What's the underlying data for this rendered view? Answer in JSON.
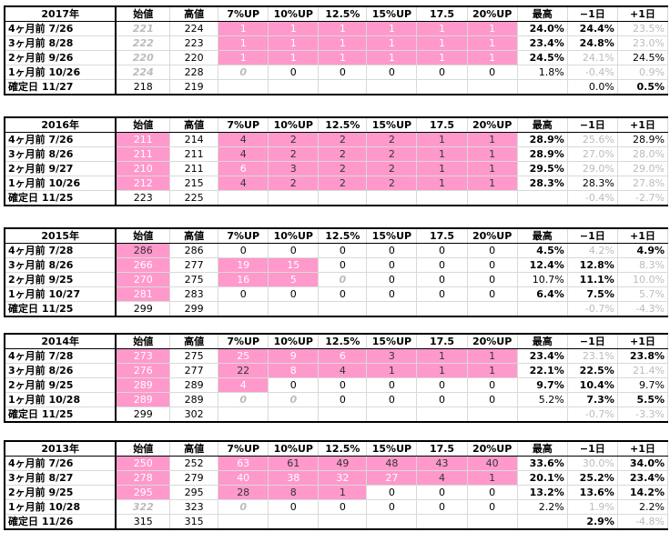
{
  "columns": [
    "始値",
    "高値",
    "7%UP",
    "10%UP",
    "12.5%",
    "15%UP",
    "17.5",
    "20%UP",
    "最高",
    "−1日",
    "+1日"
  ],
  "blocks": [
    {
      "year": "2017年",
      "rows": [
        {
          "label": "4ヶ月前  7/26",
          "v": [
            "221",
            "224",
            "1",
            "1",
            "1",
            "1",
            "1",
            "1",
            "24.0%",
            "24.4%",
            "23.5%"
          ]
        },
        {
          "label": "3ヶ月前  8/28",
          "v": [
            "222",
            "223",
            "1",
            "1",
            "1",
            "1",
            "1",
            "1",
            "23.4%",
            "24.8%",
            "23.0%"
          ]
        },
        {
          "label": "2ヶ月前  9/26",
          "v": [
            "220",
            "220",
            "1",
            "1",
            "1",
            "1",
            "1",
            "1",
            "24.5%",
            "24.1%",
            "24.5%"
          ]
        },
        {
          "label": "1ヶ月前  10/26",
          "v": [
            "224",
            "228",
            "0",
            "0",
            "0",
            "0",
            "0",
            "0",
            "1.8%",
            "-0.4%",
            "0.9%"
          ]
        },
        {
          "label": "確定日  11/27",
          "v": [
            "218",
            "219",
            "",
            "",
            "",
            "",
            "",
            "",
            "",
            "0.0%",
            "0.5%"
          ]
        }
      ]
    },
    {
      "year": "2016年",
      "rows": [
        {
          "label": "4ヶ月前  7/26",
          "v": [
            "211",
            "214",
            "4",
            "2",
            "2",
            "2",
            "1",
            "1",
            "28.9%",
            "25.6%",
            "28.9%"
          ]
        },
        {
          "label": "3ヶ月前  8/26",
          "v": [
            "211",
            "211",
            "4",
            "2",
            "2",
            "2",
            "1",
            "1",
            "28.9%",
            "27.0%",
            "28.0%"
          ]
        },
        {
          "label": "2ヶ月前  9/27",
          "v": [
            "210",
            "211",
            "6",
            "3",
            "2",
            "2",
            "1",
            "1",
            "29.5%",
            "29.0%",
            "29.0%"
          ]
        },
        {
          "label": "1ヶ月前  10/26",
          "v": [
            "212",
            "215",
            "4",
            "2",
            "2",
            "2",
            "1",
            "1",
            "28.3%",
            "28.3%",
            "27.8%"
          ]
        },
        {
          "label": "確定日  11/25",
          "v": [
            "223",
            "225",
            "",
            "",
            "",
            "",
            "",
            "",
            "",
            "-0.4%",
            "-2.7%"
          ]
        }
      ]
    },
    {
      "year": "2015年",
      "rows": [
        {
          "label": "4ヶ月前  7/28",
          "v": [
            "286",
            "286",
            "0",
            "0",
            "0",
            "0",
            "0",
            "0",
            "4.5%",
            "4.2%",
            "4.9%"
          ]
        },
        {
          "label": "3ヶ月前  8/26",
          "v": [
            "266",
            "277",
            "19",
            "15",
            "0",
            "0",
            "0",
            "0",
            "12.4%",
            "12.8%",
            "8.3%"
          ]
        },
        {
          "label": "2ヶ月前  9/25",
          "v": [
            "270",
            "275",
            "16",
            "5",
            "0",
            "0",
            "0",
            "0",
            "10.7%",
            "11.1%",
            "10.0%"
          ]
        },
        {
          "label": "1ヶ月前  10/27",
          "v": [
            "281",
            "283",
            "0",
            "0",
            "0",
            "0",
            "0",
            "0",
            "6.4%",
            "7.5%",
            "5.7%"
          ]
        },
        {
          "label": "確定日  11/25",
          "v": [
            "299",
            "299",
            "",
            "",
            "",
            "",
            "",
            "",
            "",
            "-0.7%",
            "-4.3%"
          ]
        }
      ]
    },
    {
      "year": "2014年",
      "rows": [
        {
          "label": "4ヶ月前  7/28",
          "v": [
            "273",
            "275",
            "25",
            "9",
            "6",
            "3",
            "1",
            "1",
            "23.4%",
            "23.1%",
            "23.8%"
          ]
        },
        {
          "label": "3ヶ月前  8/26",
          "v": [
            "276",
            "277",
            "22",
            "8",
            "4",
            "1",
            "1",
            "1",
            "22.1%",
            "22.5%",
            "21.4%"
          ]
        },
        {
          "label": "2ヶ月前  9/25",
          "v": [
            "289",
            "289",
            "4",
            "0",
            "0",
            "0",
            "0",
            "0",
            "9.7%",
            "10.4%",
            "9.7%"
          ]
        },
        {
          "label": "1ヶ月前  10/28",
          "v": [
            "289",
            "289",
            "0",
            "0",
            "0",
            "0",
            "0",
            "0",
            "5.2%",
            "7.3%",
            "5.5%"
          ]
        },
        {
          "label": "確定日  11/25",
          "v": [
            "299",
            "302",
            "",
            "",
            "",
            "",
            "",
            "",
            "",
            "-0.7%",
            "-3.3%"
          ]
        }
      ]
    },
    {
      "year": "2013年",
      "rows": [
        {
          "label": "4ヶ月前  7/26",
          "v": [
            "250",
            "252",
            "63",
            "61",
            "49",
            "48",
            "43",
            "40",
            "33.6%",
            "30.0%",
            "34.0%"
          ]
        },
        {
          "label": "3ヶ月前  8/27",
          "v": [
            "278",
            "279",
            "40",
            "38",
            "32",
            "27",
            "4",
            "1",
            "20.1%",
            "25.2%",
            "23.4%"
          ]
        },
        {
          "label": "2ヶ月前  9/25",
          "v": [
            "295",
            "295",
            "28",
            "8",
            "1",
            "0",
            "0",
            "0",
            "13.2%",
            "13.6%",
            "14.2%"
          ]
        },
        {
          "label": "1ヶ月前  10/28",
          "v": [
            "322",
            "323",
            "0",
            "0",
            "0",
            "0",
            "0",
            "0",
            "2.2%",
            "1.9%",
            "2.2%"
          ]
        },
        {
          "label": "確定日  11/26",
          "v": [
            "315",
            "315",
            "",
            "",
            "",
            "",
            "",
            "",
            "",
            "2.9%",
            "-4.8%"
          ]
        }
      ]
    }
  ]
}
